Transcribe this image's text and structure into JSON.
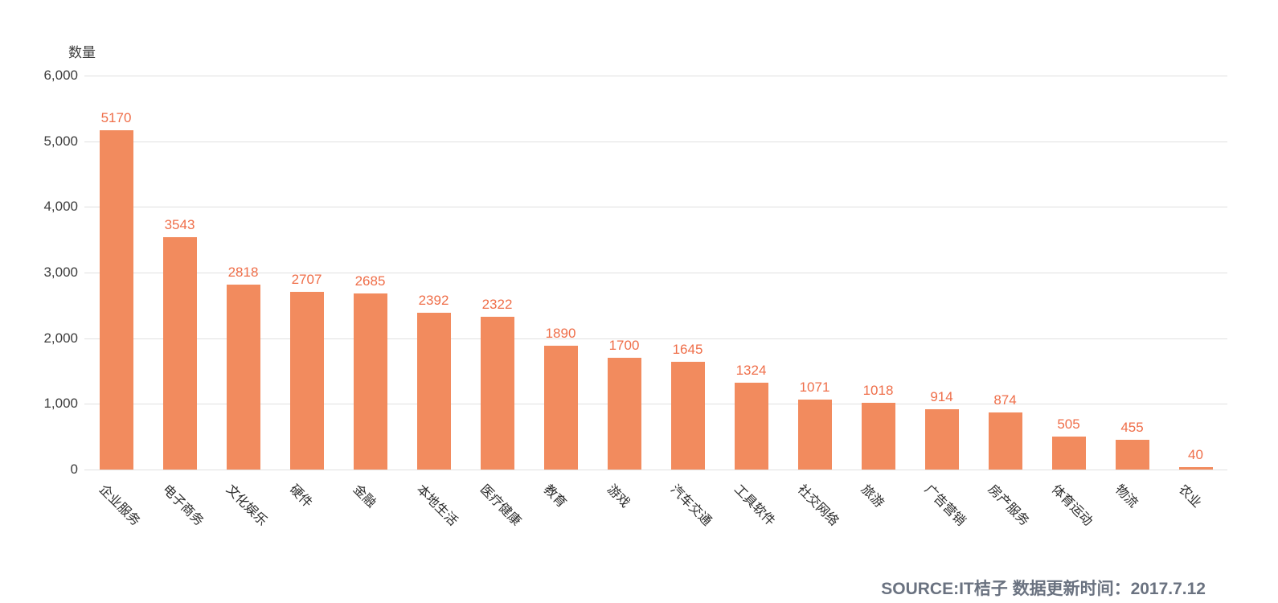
{
  "colors": {
    "background": "#FFFFFF",
    "bar": "#F28B5E",
    "value_label": "#EF6E49",
    "gridline": "#E0E0E0",
    "axis_text": "#3D3D3D",
    "category_text": "#2B2B2B",
    "source_text": "#6A7280"
  },
  "chart_data": {
    "type": "bar",
    "title": "",
    "xlabel": "",
    "ylabel": "数量",
    "ylim": [
      0,
      6000
    ],
    "grid": true,
    "legend": "none",
    "ytick_values": [
      0,
      1000,
      2000,
      3000,
      4000,
      5000,
      6000
    ],
    "ytick_labels": [
      "0",
      "1,000",
      "2,000",
      "3,000",
      "4,000",
      "5,000",
      "6,000"
    ],
    "categories": [
      "企业服务",
      "电子商务",
      "文化娱乐",
      "硬件",
      "金融",
      "本地生活",
      "医疗健康",
      "教育",
      "游戏",
      "汽车交通",
      "工具软件",
      "社交网络",
      "旅游",
      "广告营销",
      "房产服务",
      "体育运动",
      "物流",
      "农业"
    ],
    "values": [
      5170,
      3543,
      2818,
      2707,
      2685,
      2392,
      2322,
      1890,
      1700,
      1645,
      1324,
      1071,
      1018,
      914,
      874,
      505,
      455,
      40
    ],
    "source_note": "SOURCE:IT桔子 数据更新时间：2017.7.12"
  }
}
